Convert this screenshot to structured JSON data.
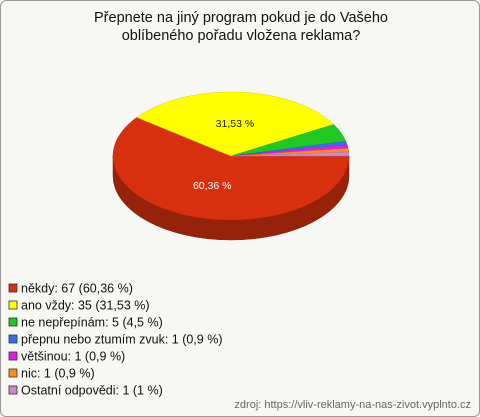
{
  "chart_data": {
    "type": "pie",
    "title": "Přepnete na jiný program pokud je do Vašeho oblíbeného pořadu vložena reklama?",
    "categories": [
      "někdy: 67 (60,36 %)",
      "ano vždy: 35 (31,53 %)",
      "ne nepřepínám: 5 (4,5 %)",
      "přepnu nebo ztumím zvuk: 1 (0,9 %)",
      "většinou: 1 (0,9 %)",
      "nic: 1 (0,9 %)",
      "Ostatní odpovědi: 1 (1 %)"
    ],
    "values": [
      60.36,
      31.53,
      4.5,
      0.9,
      0.9,
      0.9,
      1
    ],
    "value_labels": [
      "60,36 %",
      "31,53 %",
      null,
      null,
      null,
      null,
      null
    ],
    "colors": [
      "#d8300e",
      "#ffff00",
      "#22c822",
      "#3a6ee8",
      "#dd22dd",
      "#ff8c1a",
      "#cc88cc"
    ],
    "source": "zdroj: https://vliv-reklamy-na-nas-zivot.vyplnto.cz"
  }
}
